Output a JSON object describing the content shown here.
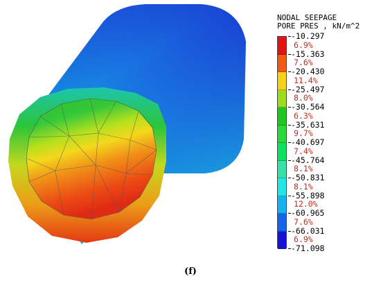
{
  "legend": {
    "title_line1": "NODAL SEEPAGE",
    "title_line2": "PORE PRES , kN/m^2",
    "ticks": [
      "-10.297",
      "-15.363",
      "-20.430",
      "-25.497",
      "-30.564",
      "-35.631",
      "-40.697",
      "-45.764",
      "-50.831",
      "-55.898",
      "-60.965",
      "-66.031",
      "-71.098"
    ],
    "bands": [
      {
        "pct": "6.9%",
        "color": "#e01414"
      },
      {
        "pct": "7.6%",
        "color": "#f05a14"
      },
      {
        "pct": "11.4%",
        "color": "#f4d21a"
      },
      {
        "pct": "8.0%",
        "color": "#a0dc1e"
      },
      {
        "pct": "6.3%",
        "color": "#1ec81e"
      },
      {
        "pct": "9.7%",
        "color": "#2ad83a"
      },
      {
        "pct": "7.4%",
        "color": "#10e060"
      },
      {
        "pct": "8.1%",
        "color": "#36e0a8"
      },
      {
        "pct": "8.1%",
        "color": "#22e6e6"
      },
      {
        "pct": "12.0%",
        "color": "#14b4f0"
      },
      {
        "pct": "7.6%",
        "color": "#1464ec"
      },
      {
        "pct": "6.9%",
        "color": "#1414d8"
      }
    ]
  },
  "caption": "(f)"
}
